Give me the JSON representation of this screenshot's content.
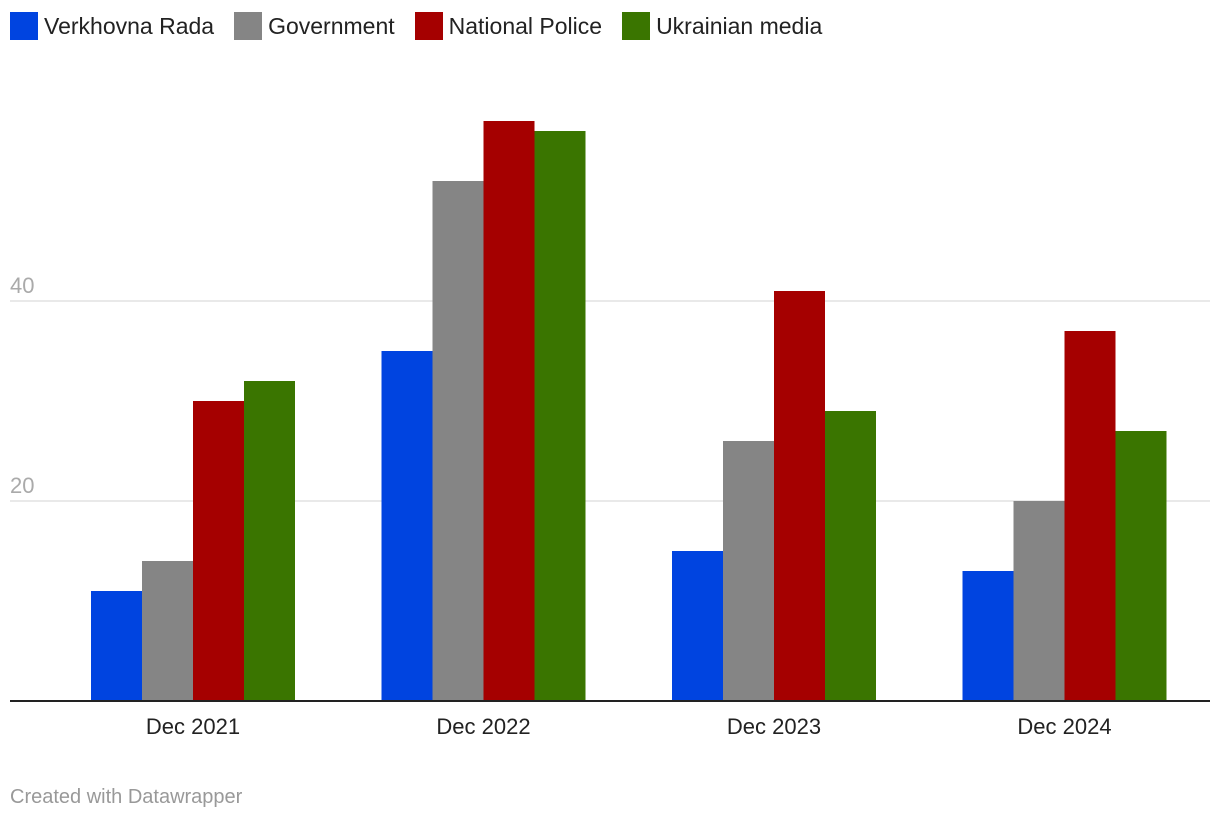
{
  "legend": [
    {
      "name": "Verkhovna Rada",
      "color": "#0044e0"
    },
    {
      "name": "Government",
      "color": "#858585"
    },
    {
      "name": "National Police",
      "color": "#a50000"
    },
    {
      "name": "Ukrainian media",
      "color": "#3a7500"
    }
  ],
  "footer": "Created with Datawrapper",
  "chart_data": {
    "type": "bar",
    "categories": [
      "Dec 2021",
      "Dec 2022",
      "Dec 2023",
      "Dec 2024"
    ],
    "series": [
      {
        "name": "Verkhovna Rada",
        "values": [
          11,
          35,
          15,
          13
        ]
      },
      {
        "name": "Government",
        "values": [
          14,
          52,
          26,
          20
        ]
      },
      {
        "name": "National Police",
        "values": [
          30,
          58,
          41,
          37
        ]
      },
      {
        "name": "Ukrainian media",
        "values": [
          32,
          57,
          29,
          27
        ]
      }
    ],
    "yticks": [
      20,
      40
    ],
    "ylim": [
      0,
      60
    ],
    "grid": true,
    "legend_position": "top-left",
    "title": "",
    "xlabel": "",
    "ylabel": ""
  }
}
